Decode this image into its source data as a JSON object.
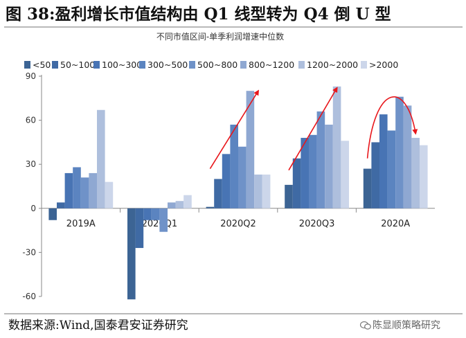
{
  "title": "图 38:盈利增长市值结构由 Q1 线型转为 Q4 倒 U 型",
  "source": "数据来源:Wind,国泰君安证券研究",
  "watermark": "陈显顺策略研究",
  "chart_data": {
    "type": "bar",
    "subtitle": "不同市值区间-单季利润增速中位数",
    "categories": [
      "2019A",
      "2020Q1",
      "2020Q2",
      "2020Q3",
      "2020A"
    ],
    "ylim": [
      -60,
      90
    ],
    "yticks": [
      -60,
      -30,
      0,
      30,
      60,
      90
    ],
    "grid": false,
    "legend_position": "top",
    "series": [
      {
        "name": "<50",
        "color": "#3c6494",
        "values": [
          -8,
          -62,
          1,
          16,
          27
        ]
      },
      {
        "name": "50~100",
        "color": "#3f6aa4",
        "values": [
          4,
          -27,
          20,
          34,
          45
        ]
      },
      {
        "name": "100~300",
        "color": "#4874b4",
        "values": [
          24,
          -8,
          37,
          48,
          64
        ]
      },
      {
        "name": "300~500",
        "color": "#5b84c0",
        "values": [
          28,
          -8,
          57,
          50,
          53
        ]
      },
      {
        "name": "500~800",
        "color": "#6f92c8",
        "values": [
          21,
          -16,
          42,
          66,
          76
        ]
      },
      {
        "name": "800~1200",
        "color": "#8fa8d2",
        "values": [
          24,
          4,
          80,
          57,
          70
        ]
      },
      {
        "name": "1200~2000",
        "color": "#aebfdd",
        "values": [
          67,
          5,
          23,
          83,
          48
        ]
      },
      {
        "name": ">2000",
        "color": "#ccd6ea",
        "values": [
          18,
          9,
          23,
          46,
          43
        ]
      }
    ],
    "arrows": [
      {
        "type": "straight",
        "category": "2020Q2",
        "from": {
          "series": 0,
          "value": 27
        },
        "to": {
          "series": 6,
          "value": 80
        }
      },
      {
        "type": "straight",
        "category": "2020Q3",
        "from": {
          "series": 0,
          "value": 26
        },
        "to": {
          "series": 6,
          "value": 82
        }
      },
      {
        "type": "curve",
        "category": "2020A",
        "from": {
          "series": 0,
          "value": 34
        },
        "peak": {
          "series": 4,
          "value": 79
        },
        "to": {
          "series": 6,
          "value": 51
        }
      }
    ],
    "arrow_color": "#e8161b"
  }
}
